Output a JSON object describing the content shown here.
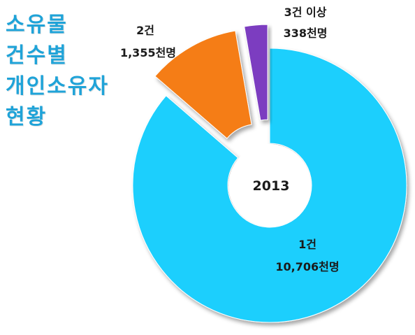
{
  "title_lines": [
    "소유물",
    "건수별",
    "개인소유자",
    "현황"
  ],
  "chart_data": {
    "type": "pie",
    "center_label": "2013",
    "unit": "천명",
    "slices": [
      {
        "category": "1건",
        "value": 10706,
        "value_label": "10,706천명",
        "color": "#1fcffd"
      },
      {
        "category": "2건",
        "value": 1355,
        "value_label": "1,355천명",
        "color": "#f57d12"
      },
      {
        "category": "3건 이상",
        "value": 338,
        "value_label": "338천명",
        "color": "#7b3cc0"
      }
    ]
  }
}
